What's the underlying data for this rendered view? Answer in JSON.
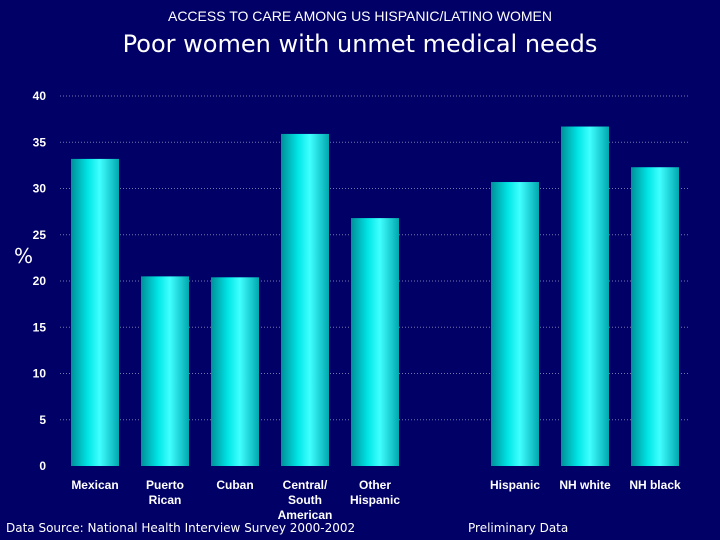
{
  "slide": {
    "supertitle": "ACCESS TO CARE AMONG US HISPANIC/LATINO WOMEN",
    "title": "Poor women with unmet medical needs",
    "source": "Data Source:  National Health Interview Survey 2000-2002",
    "note": "Preliminary Data",
    "background_color": "#000066",
    "bar_color": "#00e5e5"
  },
  "chart_data": {
    "type": "bar",
    "title": "Poor women with unmet medical needs",
    "xlabel": "",
    "ylabel": "%",
    "ylim": [
      0,
      40
    ],
    "yticks": [
      "0",
      "5",
      "10",
      "15",
      "20",
      "25",
      "30",
      "35",
      "40"
    ],
    "grid": true,
    "categories": [
      [
        "Mexican"
      ],
      [
        "Puerto",
        "Rican"
      ],
      [
        "Cuban"
      ],
      [
        "Central/",
        "South",
        "American"
      ],
      [
        "Other",
        "Hispanic"
      ],
      [],
      [
        "Hispanic"
      ],
      [
        "NH white"
      ],
      [
        "NH black"
      ]
    ],
    "values": [
      33.2,
      20.5,
      20.4,
      35.9,
      26.8,
      null,
      30.7,
      36.7,
      32.3
    ]
  }
}
